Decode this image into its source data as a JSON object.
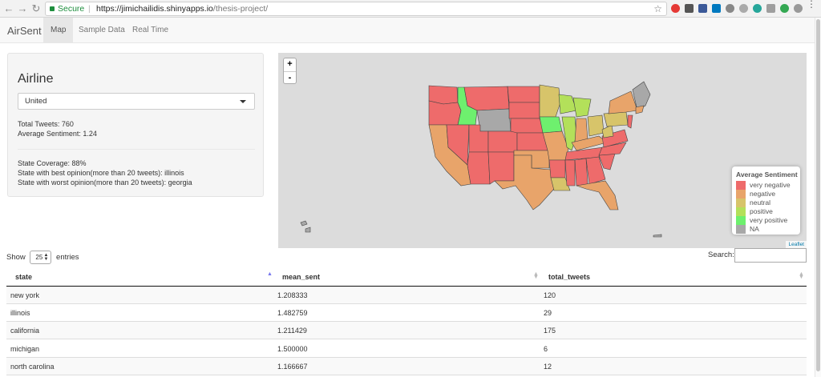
{
  "browser": {
    "secure_label": "Secure",
    "url_host": "https://jimichailidis.shinyapps.io",
    "url_path": "/thesis-project/"
  },
  "navbar": {
    "brand": "AirSent",
    "tabs": [
      "Map",
      "Sample Data",
      "Real Time"
    ],
    "active_tab": "Map"
  },
  "sidebar": {
    "title": "Airline",
    "selected_airline": "United",
    "total_tweets": "Total Tweets: 760",
    "average_sentiment": "Average Sentiment: 1.24",
    "state_coverage": "State Coverage: 88%",
    "best_state": "State with best opinion(more than 20 tweets): illinois",
    "worst_state": "State with worst opinion(more than 20 tweets): georgia"
  },
  "map": {
    "zoom_in": "+",
    "zoom_out": "-",
    "legend_title": "Average Sentiment",
    "legend": [
      {
        "label": "very negative",
        "color": "#ee6b6b"
      },
      {
        "label": "negative",
        "color": "#e8a46a"
      },
      {
        "label": "neutral",
        "color": "#d7c46a"
      },
      {
        "label": "positive",
        "color": "#b3e05a"
      },
      {
        "label": "very positive",
        "color": "#6ef06e"
      },
      {
        "label": "NA",
        "color": "#a8a8a8"
      }
    ],
    "attribution": "Leaflet"
  },
  "table": {
    "show_label": "Show",
    "entries_value": "25",
    "entries_label": "entries",
    "search_label": "Search:",
    "columns": [
      "state",
      "mean_sent",
      "total_tweets"
    ],
    "rows": [
      [
        "new york",
        "1.208333",
        "120"
      ],
      [
        "illinois",
        "1.482759",
        "29"
      ],
      [
        "california",
        "1.211429",
        "175"
      ],
      [
        "michigan",
        "1.500000",
        "6"
      ],
      [
        "north carolina",
        "1.166667",
        "12"
      ]
    ]
  }
}
